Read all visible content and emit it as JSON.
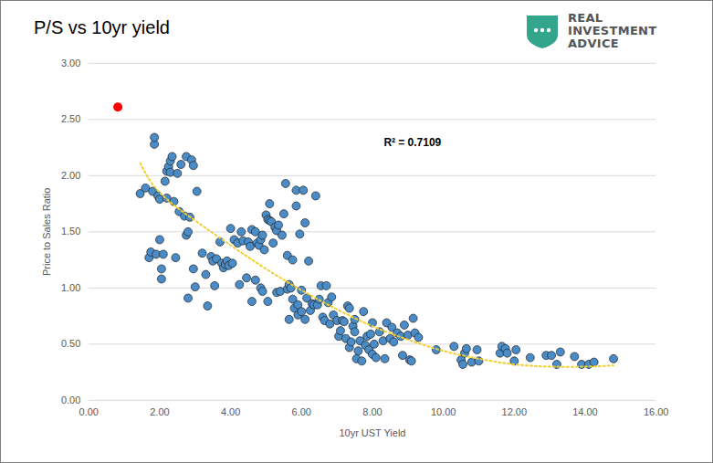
{
  "chart_data": {
    "type": "scatter",
    "title": "P/S vs 10yr yield",
    "logo_text": [
      "REAL",
      "INVESTMENT",
      "ADVICE"
    ],
    "x_label": "10yr UST Yield",
    "y_label": "Price to Sales Ratio",
    "annotation": "R² = 0.7109",
    "xlim": [
      0,
      16
    ],
    "ylim": [
      0,
      3
    ],
    "xticks": [
      {
        "value": 0,
        "label": "0.00"
      },
      {
        "value": 2,
        "label": "2.00"
      },
      {
        "value": 4,
        "label": "4.00"
      },
      {
        "value": 6,
        "label": "6.00"
      },
      {
        "value": 8,
        "label": "8.00"
      },
      {
        "value": 10,
        "label": "10.00"
      },
      {
        "value": 12,
        "label": "12.00"
      },
      {
        "value": 14,
        "label": "14.00"
      },
      {
        "value": 16,
        "label": "16.00"
      }
    ],
    "yticks": [
      {
        "value": 0,
        "label": "0.00"
      },
      {
        "value": 0.5,
        "label": "0.50"
      },
      {
        "value": 1,
        "label": "1.00"
      },
      {
        "value": 1.5,
        "label": "1.50"
      },
      {
        "value": 2,
        "label": "2.00"
      },
      {
        "value": 2.5,
        "label": "2.50"
      },
      {
        "value": 3,
        "label": "3.00"
      }
    ],
    "grid": "y",
    "series": [
      {
        "type": "scatter",
        "marker": "circle",
        "color": "#4a8cc8",
        "x": [
          1.45,
          1.6,
          1.7,
          1.75,
          1.8,
          1.85,
          1.85,
          1.9,
          1.95,
          2.0,
          2.0,
          2.05,
          2.05,
          2.1,
          2.15,
          2.2,
          2.2,
          2.25,
          2.3,
          2.35,
          2.3,
          2.4,
          2.45,
          2.5,
          2.55,
          2.6,
          2.7,
          2.75,
          2.75,
          2.8,
          2.8,
          2.85,
          2.9,
          2.95,
          2.95,
          3.05,
          3.0,
          3.2,
          3.3,
          3.35,
          3.45,
          3.5,
          3.55,
          3.6,
          3.7,
          3.75,
          3.8,
          3.85,
          3.9,
          3.95,
          4.0,
          4.05,
          4.1,
          4.2,
          4.25,
          4.3,
          4.35,
          4.45,
          4.5,
          4.55,
          4.6,
          4.6,
          4.7,
          4.7,
          4.75,
          4.8,
          4.85,
          4.85,
          4.9,
          4.9,
          4.95,
          5.0,
          5.05,
          5.05,
          5.1,
          5.1,
          5.15,
          5.2,
          5.25,
          5.3,
          5.3,
          5.35,
          5.4,
          5.45,
          5.5,
          5.55,
          5.6,
          5.6,
          5.65,
          5.65,
          5.7,
          5.75,
          5.75,
          5.8,
          5.85,
          5.85,
          5.9,
          5.9,
          5.95,
          6.0,
          6.0,
          6.05,
          6.1,
          6.1,
          6.15,
          6.2,
          6.25,
          6.3,
          6.35,
          6.4,
          6.45,
          6.5,
          6.55,
          6.6,
          6.65,
          6.7,
          6.75,
          6.8,
          6.85,
          6.9,
          7.0,
          7.05,
          7.1,
          7.15,
          7.2,
          7.25,
          7.3,
          7.35,
          7.35,
          7.4,
          7.45,
          7.5,
          7.5,
          7.55,
          7.6,
          7.65,
          7.7,
          7.75,
          7.8,
          7.85,
          7.9,
          7.95,
          8.0,
          8.0,
          8.05,
          8.1,
          8.2,
          8.3,
          8.35,
          8.4,
          8.5,
          8.55,
          8.6,
          8.7,
          8.8,
          8.85,
          8.9,
          9.0,
          9.05,
          9.1,
          9.15,
          9.2,
          9.3,
          9.8,
          10.3,
          10.5,
          10.55,
          10.6,
          10.65,
          10.8,
          10.95,
          11.0,
          11.6,
          11.65,
          11.75,
          11.8,
          12.0,
          12.05,
          12.45,
          12.9,
          13.05,
          13.2,
          13.3,
          13.7,
          13.9,
          14.1,
          14.25,
          14.8
        ],
        "values": [
          1.84,
          1.89,
          1.27,
          1.32,
          1.86,
          2.28,
          2.34,
          1.3,
          1.82,
          1.79,
          1.43,
          1.17,
          1.08,
          1.3,
          1.95,
          1.8,
          2.04,
          2.08,
          2.13,
          2.17,
          2.03,
          1.77,
          1.27,
          2.02,
          1.68,
          2.1,
          1.64,
          2.17,
          1.47,
          0.91,
          1.5,
          1.63,
          2.14,
          2.09,
          1.17,
          1.86,
          1.01,
          1.31,
          1.12,
          0.84,
          1.28,
          1.24,
          1.02,
          1.26,
          1.41,
          1.22,
          1.18,
          1.21,
          1.24,
          1.2,
          1.53,
          1.22,
          1.43,
          1.4,
          1.03,
          1.5,
          1.42,
          1.09,
          1.41,
          1.37,
          1.52,
          0.88,
          1.5,
          1.07,
          1.4,
          1.38,
          1.43,
          1.0,
          1.47,
          0.97,
          1.34,
          1.65,
          1.61,
          0.88,
          1.75,
          1.6,
          1.59,
          1.4,
          1.54,
          1.51,
          0.96,
          1.56,
          0.97,
          1.47,
          1.66,
          1.93,
          1.29,
          0.99,
          1.03,
          0.72,
          1.0,
          1.25,
          0.9,
          0.82,
          1.87,
          1.73,
          0.85,
          0.76,
          1.48,
          0.79,
          0.98,
          1.87,
          1.58,
          0.72,
          0.91,
          1.24,
          0.8,
          0.86,
          0.85,
          1.82,
          0.85,
          0.9,
          1.02,
          0.74,
          0.71,
          1.02,
          0.87,
          0.68,
          0.92,
          0.76,
          0.71,
          0.57,
          0.62,
          0.71,
          0.7,
          0.55,
          0.84,
          0.47,
          0.82,
          0.52,
          0.66,
          0.72,
          0.61,
          0.37,
          0.44,
          0.53,
          0.35,
          0.79,
          0.49,
          0.57,
          0.45,
          0.59,
          0.69,
          0.41,
          0.5,
          0.38,
          0.61,
          0.53,
          0.37,
          0.69,
          0.55,
          0.65,
          0.52,
          0.6,
          0.57,
          0.4,
          0.67,
          0.58,
          0.36,
          0.35,
          0.73,
          0.6,
          0.56,
          0.45,
          0.48,
          0.36,
          0.32,
          0.42,
          0.46,
          0.34,
          0.45,
          0.35,
          0.42,
          0.48,
          0.46,
          0.42,
          0.35,
          0.45,
          0.38,
          0.4,
          0.4,
          0.32,
          0.43,
          0.39,
          0.32,
          0.32,
          0.34,
          0.37
        ]
      },
      {
        "type": "scatter",
        "marker": "circle",
        "color": "#ff0000",
        "x": [
          0.82
        ],
        "values": [
          2.61
        ]
      },
      {
        "type": "line",
        "line_style": "dotted",
        "color": "#f2cf2e",
        "x": [
          1.45,
          2,
          3,
          4,
          5,
          6,
          7,
          8,
          9,
          10,
          11,
          12,
          13,
          14,
          14.8
        ],
        "values": [
          2.11,
          1.85,
          1.6,
          1.38,
          1.17,
          0.98,
          0.81,
          0.66,
          0.54,
          0.44,
          0.37,
          0.32,
          0.3,
          0.3,
          0.31
        ]
      }
    ]
  }
}
